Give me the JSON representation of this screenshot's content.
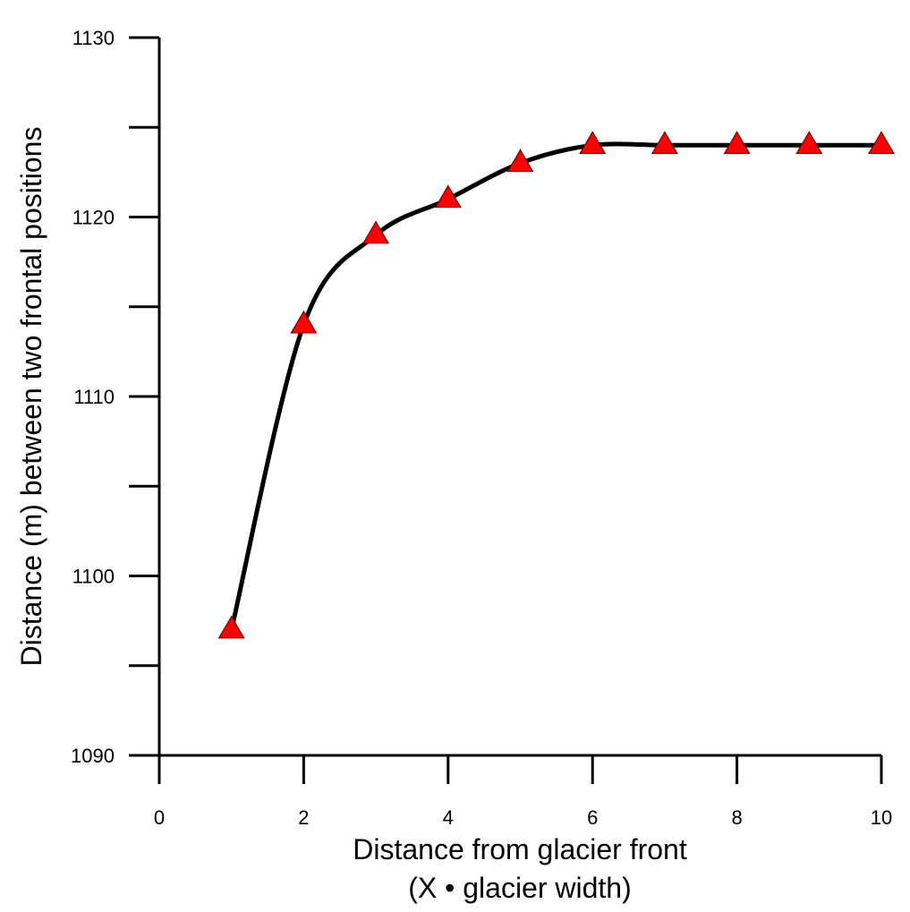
{
  "chart_data": {
    "type": "line",
    "xlabel_line1": "Distance from glacier front",
    "xlabel_line2": "(X • glacier width)",
    "ylabel": "Distance (m) between two frontal positions",
    "xlim": [
      0,
      10
    ],
    "ylim": [
      1090,
      1130
    ],
    "x_ticks": [
      "0",
      "2",
      "4",
      "6",
      "8",
      "10"
    ],
    "y_ticks": [
      "1090",
      "1100",
      "1110",
      "1120",
      "1130"
    ],
    "grid": false,
    "marker": "triangle",
    "colors": {
      "line": "#000000",
      "marker": "#ff0000",
      "marker_edge": "#800000"
    },
    "series": [
      {
        "x": [
          1,
          2,
          3,
          4,
          5,
          6,
          7,
          8,
          9,
          10
        ],
        "values": [
          1097,
          1114,
          1119,
          1121,
          1123,
          1124,
          1124,
          1124,
          1124,
          1124
        ]
      }
    ]
  }
}
